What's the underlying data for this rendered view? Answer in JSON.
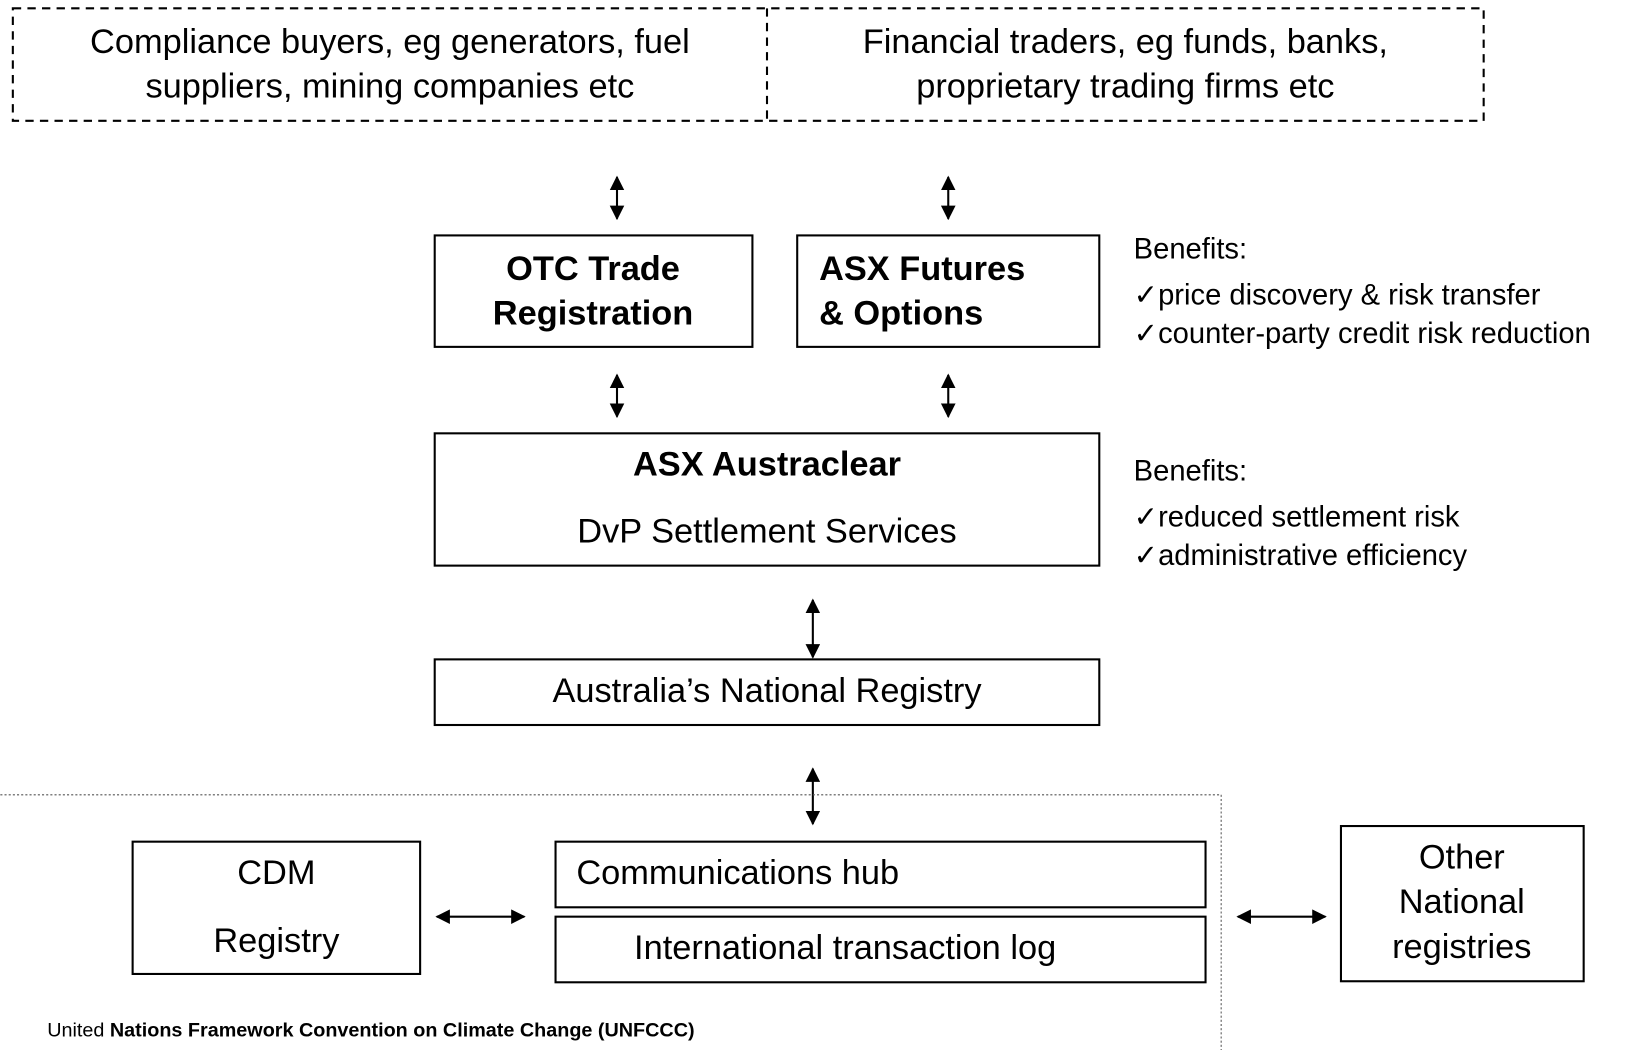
{
  "participants": [
    {
      "lines": [
        "Compliance buyers, eg generators, fuel",
        "suppliers, mining companies etc"
      ]
    },
    {
      "lines": [
        "Financial traders, eg funds, banks,",
        "proprietary trading firms etc"
      ]
    }
  ],
  "nodes": {
    "otc": [
      "OTC Trade",
      "Registration"
    ],
    "futures": [
      "ASX Futures",
      "& Options"
    ],
    "austraclear": {
      "title": "ASX Austraclear",
      "subtitle": "DvP Settlement Services"
    },
    "registry": "Australia’s National Registry",
    "cdm": [
      "CDM",
      "Registry"
    ],
    "hub": "Communications hub",
    "itl": "International transaction log",
    "other": [
      "Other",
      "National",
      "registries"
    ]
  },
  "benefits": [
    {
      "heading": "Benefits:",
      "items": [
        "✓price discovery & risk transfer",
        "✓counter-party credit risk reduction"
      ]
    },
    {
      "heading": "Benefits:",
      "items": [
        "✓reduced settlement risk",
        "✓administrative efficiency"
      ]
    }
  ],
  "footer": {
    "prefix": "United",
    "bold": "Nations Framework Convention on Climate Change (UNFCCC)"
  }
}
